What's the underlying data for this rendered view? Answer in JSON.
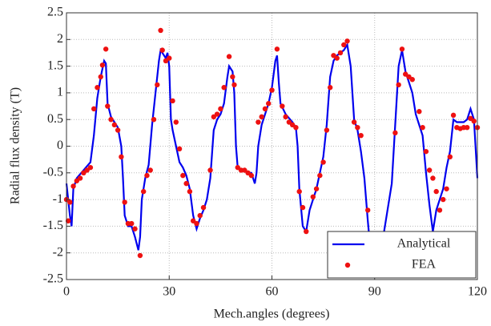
{
  "chart_data": {
    "type": "line",
    "x_label": "Mech.angles (degrees)",
    "y_label": "Radial flux density (T)",
    "xlim": [
      0,
      120
    ],
    "xticks": [
      0,
      30,
      60,
      90,
      120
    ],
    "ylim": [
      -2.5,
      2.5
    ],
    "yticks": [
      -2.5,
      -2,
      -1.5,
      -1,
      -0.5,
      0,
      0.5,
      1,
      1.5,
      2,
      2.5
    ],
    "grid": true,
    "legend": "lower right",
    "series": [
      {
        "name": "Analytical",
        "color": "#0000ee",
        "type": "line",
        "x": [
          0,
          1,
          1.5,
          2,
          3,
          5,
          7,
          8,
          9,
          10,
          11,
          11.5,
          12,
          13,
          14,
          15,
          16,
          16.5,
          17,
          18,
          19,
          20,
          21,
          21.5,
          22,
          23,
          24,
          25,
          26,
          27,
          27.5,
          28,
          29,
          29.5,
          30,
          30.5,
          31,
          32,
          33,
          34,
          35,
          36,
          37,
          38,
          39,
          40,
          41,
          42,
          43,
          44,
          45,
          46,
          47,
          47.5,
          48.5,
          49,
          49.5,
          50,
          51,
          52,
          53,
          54,
          55,
          55.5,
          56,
          57,
          58,
          59,
          60,
          61,
          61.5,
          62,
          62.5,
          64,
          66,
          67,
          67.5,
          68,
          69,
          70,
          71,
          72,
          73,
          74,
          75,
          76,
          77,
          78,
          79,
          80,
          81,
          82,
          83,
          84,
          85,
          86,
          87,
          88,
          89,
          90,
          91,
          92,
          93,
          94,
          95,
          96,
          97,
          98,
          99,
          100,
          101,
          102,
          103,
          104,
          105,
          106,
          107,
          108,
          109,
          110,
          111,
          112,
          113,
          114,
          115,
          116,
          117,
          118,
          119,
          120
        ],
        "values": [
          -0.7,
          -1.3,
          -1.5,
          -0.8,
          -0.6,
          -0.45,
          -0.3,
          0.2,
          0.9,
          1.3,
          1.6,
          1.55,
          0.8,
          0.55,
          0.45,
          0.35,
          0.0,
          -0.6,
          -1.3,
          -1.5,
          -1.5,
          -1.7,
          -1.95,
          -1.7,
          -1.0,
          -0.6,
          -0.35,
          0.4,
          1.0,
          1.6,
          1.8,
          1.75,
          1.65,
          1.75,
          1.5,
          0.5,
          0.3,
          0.0,
          -0.3,
          -0.4,
          -0.55,
          -0.8,
          -1.3,
          -1.55,
          -1.35,
          -1.2,
          -1.0,
          -0.6,
          0.3,
          0.5,
          0.6,
          0.8,
          1.3,
          1.5,
          1.4,
          1.0,
          0.0,
          -0.4,
          -0.45,
          -0.45,
          -0.5,
          -0.5,
          -0.7,
          -0.5,
          0.0,
          0.4,
          0.6,
          0.8,
          1.1,
          1.6,
          1.7,
          1.2,
          0.8,
          0.6,
          0.45,
          0.35,
          0.0,
          -0.8,
          -1.5,
          -1.6,
          -1.2,
          -1.0,
          -0.8,
          -0.5,
          -0.2,
          0.4,
          1.3,
          1.6,
          1.7,
          1.75,
          1.8,
          1.9,
          1.5,
          0.5,
          0.3,
          -0.1,
          -0.6,
          -1.4,
          -2.1,
          -2.0,
          -2.0,
          -1.9,
          -1.5,
          -1.1,
          -0.7,
          0.4,
          1.5,
          1.8,
          1.4,
          1.2,
          1.0,
          0.6,
          0.4,
          0.2,
          -0.5,
          -1.1,
          -1.6,
          -1.2,
          -1.0,
          -0.8,
          -0.4,
          -0.1,
          0.5,
          0.45,
          0.45,
          0.45,
          0.5,
          0.7,
          0.5,
          -0.6
        ]
      },
      {
        "name": "FEA",
        "color": "#ee1111",
        "type": "scatter",
        "x": [
          0,
          0.5,
          1,
          2,
          3,
          4,
          5,
          6,
          7,
          8,
          9,
          10,
          10.5,
          11.5,
          12,
          13,
          14,
          15,
          16,
          17,
          18,
          19,
          20,
          21.5,
          22.5,
          23.5,
          24.5,
          25.5,
          26.5,
          27.5,
          28,
          29,
          30,
          31,
          32,
          33,
          34,
          35,
          36,
          37,
          38,
          39,
          40,
          42,
          43,
          44,
          45,
          46,
          47.5,
          48.5,
          49,
          50,
          51,
          52,
          53,
          54,
          56,
          57,
          58,
          59,
          60,
          61.5,
          63,
          64,
          65,
          66,
          67,
          68,
          69,
          70,
          72,
          73,
          74,
          75,
          76,
          77,
          78,
          79,
          80,
          81,
          82,
          84,
          85,
          86,
          88,
          96,
          97,
          98,
          99,
          100,
          101,
          103,
          104,
          105,
          106,
          107,
          108,
          109,
          110,
          111,
          112,
          113,
          114,
          115,
          116,
          117,
          118,
          119,
          120
        ],
        "values": [
          -1.0,
          -1.4,
          -1.05,
          -0.75,
          -0.65,
          -0.6,
          -0.5,
          -0.45,
          -0.4,
          0.7,
          1.1,
          1.3,
          1.52,
          1.82,
          0.75,
          0.5,
          0.4,
          0.3,
          -0.2,
          -1.05,
          -1.45,
          -1.45,
          -1.55,
          -2.05,
          -0.85,
          -0.55,
          -0.45,
          0.5,
          1.15,
          2.17,
          1.8,
          1.6,
          1.65,
          0.85,
          0.45,
          -0.05,
          -0.55,
          -0.7,
          -0.85,
          -1.4,
          -1.45,
          -1.3,
          -1.15,
          -0.45,
          0.55,
          0.6,
          0.7,
          1.1,
          1.68,
          1.3,
          1.15,
          -0.4,
          -0.45,
          -0.45,
          -0.5,
          -0.55,
          0.45,
          0.55,
          0.7,
          0.8,
          1.05,
          1.82,
          0.75,
          0.55,
          0.45,
          0.4,
          0.35,
          -0.85,
          -1.15,
          -1.6,
          -0.95,
          -0.8,
          -0.55,
          -0.3,
          0.3,
          1.1,
          1.7,
          1.65,
          1.75,
          1.9,
          1.97,
          0.45,
          0.35,
          0.2,
          -1.2,
          0.25,
          1.15,
          1.82,
          1.35,
          1.3,
          1.25,
          0.65,
          0.35,
          -0.1,
          -0.45,
          -0.6,
          -0.85,
          -1.2,
          -1.0,
          -0.8,
          -0.2,
          0.58,
          0.35,
          0.33,
          0.35,
          0.35,
          0.52,
          0.47,
          0.35
        ]
      }
    ]
  }
}
